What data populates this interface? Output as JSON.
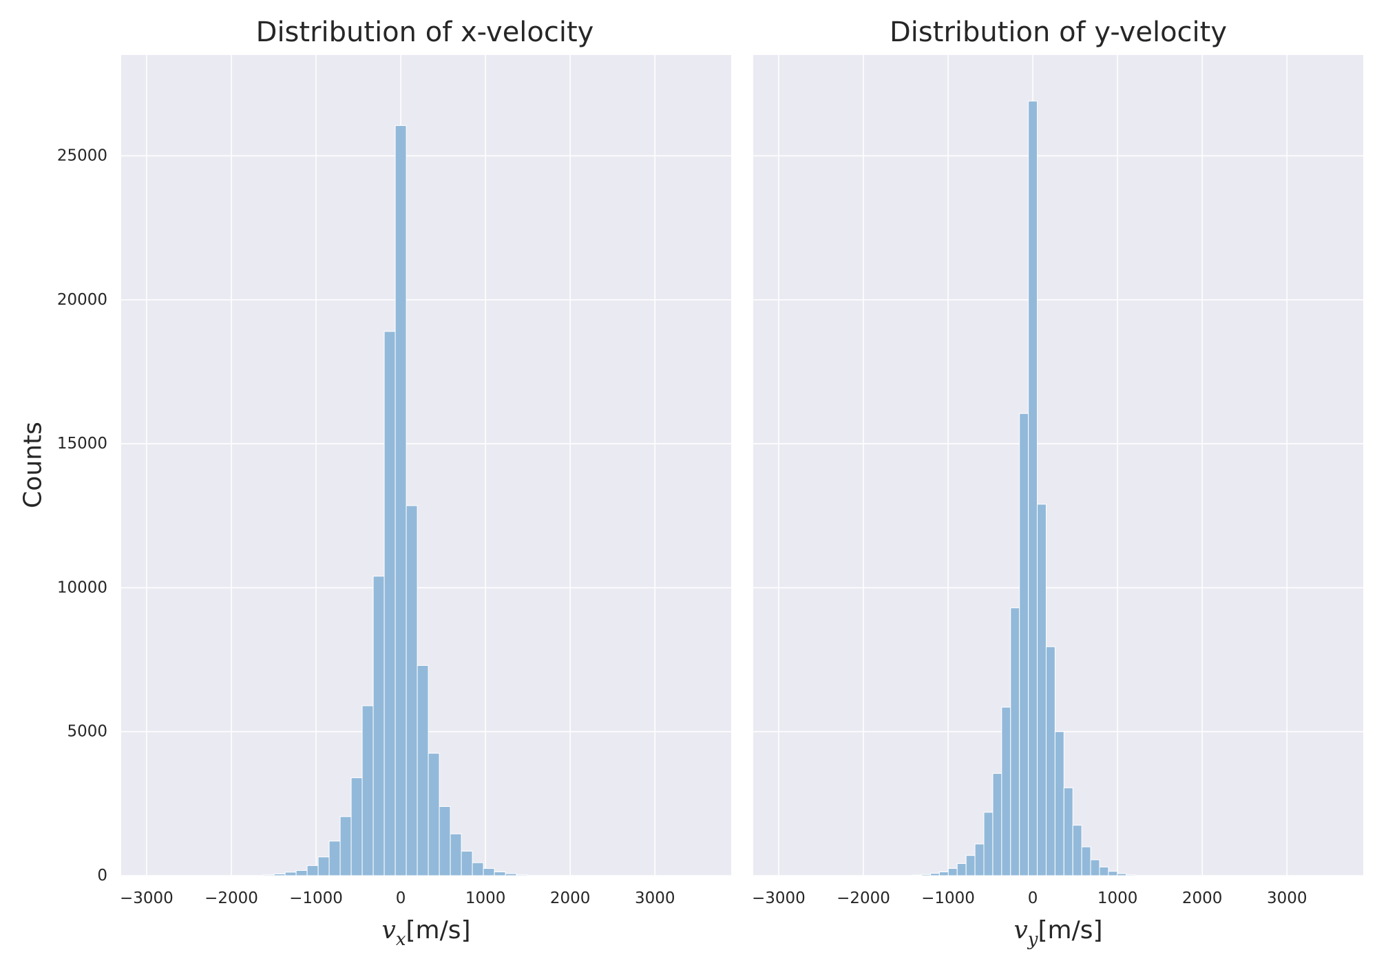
{
  "chart_data": [
    {
      "type": "bar",
      "title": "Distribution of x-velocity",
      "xlabel_symbol": "v",
      "xlabel_subscript": "x",
      "xlabel_unit": "[m/s]",
      "ylabel": "Counts",
      "xlim": [
        -3300,
        3900
      ],
      "ylim": [
        0,
        28500
      ],
      "xticks": [
        -3000,
        -2000,
        -1000,
        0,
        1000,
        2000,
        3000
      ],
      "xtick_labels": [
        "−3000",
        "−2000",
        "−1000",
        "0",
        "1000",
        "2000",
        "3000"
      ],
      "yticks": [
        0,
        5000,
        10000,
        15000,
        20000,
        25000
      ],
      "ytick_labels": [
        "0",
        "5000",
        "10000",
        "15000",
        "20000",
        "25000"
      ],
      "grid": true,
      "bar_color": "#92b9d9",
      "bin_width": 130,
      "bins": [
        {
          "x": -1560,
          "count": 30
        },
        {
          "x": -1430,
          "count": 60
        },
        {
          "x": -1300,
          "count": 120
        },
        {
          "x": -1170,
          "count": 180
        },
        {
          "x": -1040,
          "count": 350
        },
        {
          "x": -910,
          "count": 650
        },
        {
          "x": -780,
          "count": 1200
        },
        {
          "x": -650,
          "count": 2050
        },
        {
          "x": -520,
          "count": 3400
        },
        {
          "x": -390,
          "count": 5900
        },
        {
          "x": -260,
          "count": 10400
        },
        {
          "x": -130,
          "count": 18900
        },
        {
          "x": 0,
          "count": 26050
        },
        {
          "x": 130,
          "count": 12850
        },
        {
          "x": 260,
          "count": 7300
        },
        {
          "x": 390,
          "count": 4250
        },
        {
          "x": 520,
          "count": 2400
        },
        {
          "x": 650,
          "count": 1450
        },
        {
          "x": 780,
          "count": 850
        },
        {
          "x": 910,
          "count": 450
        },
        {
          "x": 1040,
          "count": 250
        },
        {
          "x": 1170,
          "count": 130
        },
        {
          "x": 1300,
          "count": 70
        },
        {
          "x": 1430,
          "count": 30
        }
      ]
    },
    {
      "type": "bar",
      "title": "Distribution of y-velocity",
      "xlabel_symbol": "v",
      "xlabel_subscript": "y",
      "xlabel_unit": "[m/s]",
      "ylabel": "",
      "xlim": [
        -3300,
        3900
      ],
      "ylim": [
        0,
        28500
      ],
      "xticks": [
        -3000,
        -2000,
        -1000,
        0,
        1000,
        2000,
        3000
      ],
      "xtick_labels": [
        "−3000",
        "−2000",
        "−1000",
        "0",
        "1000",
        "2000",
        "3000"
      ],
      "yticks": [
        0,
        5000,
        10000,
        15000,
        20000,
        25000
      ],
      "ytick_labels": [],
      "grid": true,
      "bar_color": "#92b9d9",
      "bin_width": 105,
      "bins": [
        {
          "x": -1365,
          "count": 20
        },
        {
          "x": -1260,
          "count": 40
        },
        {
          "x": -1155,
          "count": 80
        },
        {
          "x": -1050,
          "count": 130
        },
        {
          "x": -945,
          "count": 250
        },
        {
          "x": -840,
          "count": 420
        },
        {
          "x": -735,
          "count": 700
        },
        {
          "x": -630,
          "count": 1100
        },
        {
          "x": -525,
          "count": 2200
        },
        {
          "x": -420,
          "count": 3550
        },
        {
          "x": -315,
          "count": 5850
        },
        {
          "x": -210,
          "count": 9300
        },
        {
          "x": -105,
          "count": 16050
        },
        {
          "x": 0,
          "count": 26900
        },
        {
          "x": 105,
          "count": 12900
        },
        {
          "x": 210,
          "count": 7950
        },
        {
          "x": 315,
          "count": 5000
        },
        {
          "x": 420,
          "count": 3050
        },
        {
          "x": 525,
          "count": 1750
        },
        {
          "x": 630,
          "count": 1000
        },
        {
          "x": 735,
          "count": 550
        },
        {
          "x": 840,
          "count": 300
        },
        {
          "x": 945,
          "count": 150
        },
        {
          "x": 1050,
          "count": 70
        },
        {
          "x": 1155,
          "count": 30
        }
      ]
    }
  ]
}
